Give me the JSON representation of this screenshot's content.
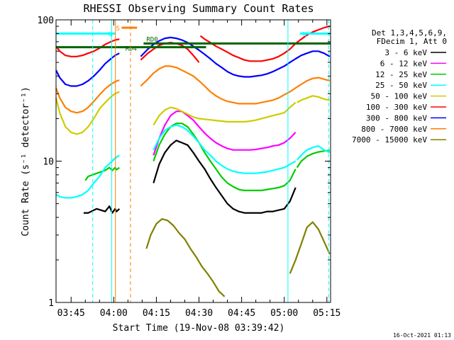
{
  "chart_data": {
    "type": "line",
    "title": "RHESSI Observing Summary Count Rates",
    "xlabel": "Start Time (19-Nov-08 03:39:42)",
    "ylabel": "Count Rate (s⁻¹ detector⁻¹)",
    "yscale": "log",
    "ylim": [
      1,
      100
    ],
    "xlim_minutes": [
      219.7,
      316.3
    ],
    "x_ticks": [
      {
        "label": "03:45",
        "minutes": 225
      },
      {
        "label": "04:00",
        "minutes": 240
      },
      {
        "label": "04:15",
        "minutes": 255
      },
      {
        "label": "04:30",
        "minutes": 270
      },
      {
        "label": "04:45",
        "minutes": 285
      },
      {
        "label": "05:00",
        "minutes": 300
      },
      {
        "label": "05:15",
        "minutes": 315
      }
    ],
    "y_ticks": [
      {
        "label": "1",
        "value": 1
      },
      {
        "label": "10",
        "value": 10
      },
      {
        "label": "100",
        "value": 100
      }
    ],
    "legend": {
      "placement": "right",
      "header": [
        "Det 1,3,4,5,6,9,",
        "FDecim 1, Att 0"
      ],
      "entries": [
        {
          "label": "3 - 6 keV",
          "color": "#000000"
        },
        {
          "label": "6 - 12 keV",
          "color": "#ff00ff"
        },
        {
          "label": "12 - 25 keV",
          "color": "#00cc00"
        },
        {
          "label": "25 - 50 keV",
          "color": "#00ffff"
        },
        {
          "label": "50 - 100 keV",
          "color": "#cccc00"
        },
        {
          "label": "100 - 300 keV",
          "color": "#ff0000"
        },
        {
          "label": "300 - 800 keV",
          "color": "#0000ff"
        },
        {
          "label": "800 - 7000 keV",
          "color": "#ff7f00"
        },
        {
          "label": "7000 - 15000 keV",
          "color": "#808000"
        }
      ]
    },
    "series": [
      {
        "name": "3 - 6 keV",
        "color": "#000000",
        "segments": [
          {
            "x": [
              229.4,
              231,
              234,
              237,
              238.5,
              239.5,
              240.5,
              241,
              242
            ],
            "y": [
              4.3,
              4.3,
              4.6,
              4.4,
              4.8,
              4.3,
              4.6,
              4.4,
              4.6
            ]
          },
          {
            "x": [
              254,
              256,
              258,
              260,
              262,
              264,
              266,
              268,
              270,
              272,
              274,
              276,
              278,
              280,
              282,
              284,
              286,
              288,
              290,
              292,
              294,
              296,
              298,
              300,
              302,
              304
            ],
            "y": [
              7,
              9.5,
              11.5,
              13,
              14,
              13.5,
              13,
              11.5,
              10,
              8.8,
              7.5,
              6.5,
              5.7,
              5,
              4.6,
              4.4,
              4.3,
              4.3,
              4.3,
              4.3,
              4.4,
              4.4,
              4.5,
              4.6,
              5.2,
              6.5
            ]
          }
        ]
      },
      {
        "name": "6 - 12 keV",
        "color": "#ff00ff",
        "segments": [
          {
            "x": [
              254,
              256,
              258,
              260,
              262,
              264,
              266,
              268,
              270,
              272,
              274,
              276,
              278,
              280,
              282,
              284,
              286,
              288,
              290,
              292,
              294,
              296,
              298,
              300,
              302,
              304
            ],
            "y": [
              11,
              14.5,
              18,
              21,
              22.5,
              22.5,
              21,
              19.5,
              17.5,
              15.8,
              14.5,
              13.5,
              12.8,
              12.3,
              12,
              12,
              12,
              12,
              12.1,
              12.3,
              12.5,
              12.8,
              13,
              13.5,
              14.5,
              16
            ]
          }
        ]
      },
      {
        "name": "12 - 25 keV",
        "color": "#00cc00",
        "segments": [
          {
            "x": [
              230,
              231,
              234,
              237,
              238.5,
              239.5,
              240.5,
              241,
              242
            ],
            "y": [
              7.3,
              7.8,
              8.2,
              8.6,
              9,
              8.6,
              9,
              8.7,
              9
            ]
          },
          {
            "x": [
              254,
              256,
              258,
              260,
              262,
              264,
              266,
              268,
              270,
              272,
              274,
              276,
              278,
              280,
              282,
              284,
              286,
              288,
              290,
              292,
              294,
              296,
              298,
              300,
              302,
              304
            ],
            "y": [
              10,
              13,
              15.5,
              17.5,
              18.5,
              18.5,
              17.5,
              15.5,
              13.5,
              11.5,
              10,
              8.8,
              7.7,
              7,
              6.6,
              6.3,
              6.2,
              6.2,
              6.2,
              6.2,
              6.3,
              6.4,
              6.5,
              6.7,
              7.3,
              8.8
            ]
          },
          {
            "x": [
              304.5,
              306,
              308,
              310,
              312,
              314,
              316
            ],
            "y": [
              9,
              10,
              10.8,
              11.3,
              11.6,
              11.8,
              11.9
            ]
          }
        ]
      },
      {
        "name": "25 - 50 keV",
        "color": "#00ffff",
        "segments": [
          {
            "x": [
              219.7,
              221,
              223,
              225,
              227,
              229,
              231,
              233,
              235,
              237,
              239,
              240.5,
              242
            ],
            "y": [
              5.8,
              5.6,
              5.5,
              5.5,
              5.6,
              5.8,
              6.2,
              7,
              7.8,
              9,
              9.8,
              10.5,
              11
            ]
          },
          {
            "x": [
              254,
              256,
              258,
              260,
              262,
              264,
              266,
              268,
              270,
              272,
              274,
              276,
              278,
              280,
              282,
              284,
              286,
              288,
              290,
              292,
              294,
              296,
              298,
              300,
              302,
              304
            ],
            "y": [
              12,
              14.5,
              16.5,
              17.5,
              18,
              17.5,
              16.5,
              15,
              13.5,
              12,
              11,
              10,
              9.3,
              8.8,
              8.5,
              8.3,
              8.2,
              8.2,
              8.2,
              8.3,
              8.4,
              8.6,
              8.8,
              9,
              9.5,
              10
            ]
          },
          {
            "x": [
              304.5,
              306,
              308,
              310,
              312,
              314,
              316
            ],
            "y": [
              10.2,
              11,
              12,
              12.5,
              12.8,
              12,
              11.5
            ]
          }
        ]
      },
      {
        "name": "50 - 100 keV",
        "color": "#cccc00",
        "segments": [
          {
            "x": [
              219.7,
              221,
              223,
              225,
              227,
              229,
              231,
              233,
              235,
              237,
              239,
              240.5,
              242
            ],
            "y": [
              28,
              22,
              17.5,
              16,
              15.5,
              16,
              17.5,
              20,
              23.5,
              26,
              28.5,
              30,
              31
            ]
          },
          {
            "x": [
              254,
              256,
              258,
              260,
              262,
              264,
              266,
              268,
              270,
              272,
              274,
              276,
              278,
              280,
              282,
              284,
              286,
              288,
              290,
              292,
              294,
              296,
              298,
              300,
              302,
              304
            ],
            "y": [
              18,
              21,
              23,
              24,
              23.5,
              22.5,
              21.5,
              20.5,
              20,
              19.8,
              19.6,
              19.4,
              19.2,
              19,
              19,
              19,
              19,
              19.2,
              19.5,
              20,
              20.5,
              21,
              21.5,
              22,
              24,
              26
            ]
          },
          {
            "x": [
              304.5,
              306,
              308,
              310,
              312,
              314,
              316
            ],
            "y": [
              26,
              27,
              28,
              29,
              28.5,
              27.5,
              27
            ]
          }
        ]
      },
      {
        "name": "100 - 300 keV",
        "color": "#ff0000",
        "segments": [
          {
            "x": [
              219.7,
              221,
              223,
              225,
              227,
              229,
              231,
              233,
              235,
              237,
              239,
              240.5,
              242
            ],
            "y": [
              65,
              60,
              56,
              55,
              55,
              56,
              58,
              60,
              63,
              67,
              70,
              72,
              73
            ]
          },
          {
            "x": [
              249.5,
              252,
              254,
              256,
              258,
              260,
              262,
              264,
              266,
              268,
              270
            ],
            "y": [
              52,
              58,
              62,
              66,
              68,
              69,
              68,
              66,
              62,
              56,
              50
            ]
          },
          {
            "x": [
              270.5,
              272,
              274,
              276,
              278,
              280,
              282,
              284,
              286,
              288,
              290,
              292,
              294,
              296,
              298,
              300,
              302,
              304,
              306,
              308,
              310,
              312,
              314,
              316
            ],
            "y": [
              77,
              73,
              69,
              65,
              62,
              59,
              56,
              54,
              52,
              51,
              51,
              51,
              52,
              53,
              55,
              58,
              62,
              68,
              73,
              78,
              82,
              85,
              88,
              90
            ]
          }
        ]
      },
      {
        "name": "300 - 800 keV",
        "color": "#0000ff",
        "segments": [
          {
            "x": [
              219.7,
              221,
              223,
              225,
              227,
              229,
              231,
              233,
              235,
              237,
              239,
              240.5,
              242
            ],
            "y": [
              44,
              39,
              35,
              34,
              34,
              35,
              37,
              40,
              44,
              49,
              53,
              56,
              58
            ]
          },
          {
            "x": [
              249.5,
              252,
              254,
              256,
              258,
              260,
              262,
              264,
              266,
              268,
              270,
              272,
              274,
              276,
              278,
              280,
              282,
              284,
              286,
              288,
              290,
              292,
              294,
              296,
              298,
              300,
              302,
              304,
              306,
              308,
              310,
              312,
              314,
              316
            ],
            "y": [
              55,
              62,
              67,
              71,
              74,
              75,
              74,
              72,
              69,
              65,
              61,
              57,
              53,
              49,
              46,
              43,
              41,
              40,
              39.5,
              39.5,
              40,
              40.5,
              41.5,
              43,
              45,
              47,
              50,
              53,
              56,
              58,
              60,
              60,
              58,
              55
            ]
          }
        ]
      },
      {
        "name": "800 - 7000 keV",
        "color": "#ff7f00",
        "segments": [
          {
            "x": [
              219.7,
              221,
              223,
              225,
              227,
              229,
              231,
              233,
              235,
              237,
              239,
              240.5,
              242
            ],
            "y": [
              33,
              28,
              24,
              22.5,
              22,
              22.5,
              24,
              26.5,
              29.5,
              32.5,
              35,
              36.5,
              37.5
            ]
          },
          {
            "x": [
              249.5,
              252,
              254,
              256,
              258,
              260,
              262,
              264,
              266,
              268,
              270,
              272,
              274,
              276,
              278,
              280,
              282,
              284,
              286,
              288,
              290,
              292,
              294,
              296,
              298,
              300,
              302,
              304,
              306,
              308,
              310,
              312,
              314,
              316
            ],
            "y": [
              34,
              38,
              42,
              45,
              47,
              47,
              46,
              44,
              42,
              40,
              37,
              34,
              31,
              29,
              27.5,
              26.5,
              26,
              25.5,
              25.5,
              25.5,
              25.5,
              26,
              26.5,
              27,
              28,
              29.5,
              31,
              33,
              35,
              37,
              38.5,
              39,
              38,
              37
            ]
          }
        ]
      },
      {
        "name": "7000 - 15000 keV",
        "color": "#808000",
        "segments": [
          {
            "x": [
              251.5,
              253,
              255,
              257,
              259,
              261,
              263,
              265,
              267,
              269,
              271,
              273,
              275,
              277,
              279
            ],
            "y": [
              2.4,
              3,
              3.6,
              3.9,
              3.8,
              3.5,
              3.1,
              2.8,
              2.4,
              2.1,
              1.8,
              1.6,
              1.4,
              1.2,
              1.1
            ]
          },
          {
            "x": [
              302,
              304,
              306,
              308,
              310,
              312,
              314,
              316
            ],
            "y": [
              1.6,
              2,
              2.6,
              3.4,
              3.7,
              3.3,
              2.7,
              2.2
            ]
          }
        ]
      }
    ],
    "state_bars": [
      {
        "label": "N",
        "color": "#00ffff",
        "start_min": 219.7,
        "end_min": 240.5,
        "value": 80
      },
      {
        "label": "N",
        "color": "#00ffff",
        "start_min": 305.5,
        "end_min": 316.3,
        "value": 80
      },
      {
        "label": "S",
        "color": "#ff7f00",
        "start_min": 242.8,
        "end_min": 248.2,
        "value": 88
      },
      {
        "label": "RD4",
        "color": "#006400",
        "start_min": 219.7,
        "end_min": 272.5,
        "value": 64
      },
      {
        "label": "RD0",
        "color": "#006400",
        "start_min": 250.5,
        "end_min": 316.3,
        "value": 68
      }
    ],
    "vertical_markers": [
      {
        "minutes": 232.6,
        "color": "#00ffff",
        "style": "dashed"
      },
      {
        "minutes": 239.3,
        "color": "#00ffff",
        "style": "solid"
      },
      {
        "minutes": 240.6,
        "color": "#ff7f00",
        "style": "solid"
      },
      {
        "minutes": 245.9,
        "color": "#ff7f00",
        "style": "dashed"
      },
      {
        "minutes": 301.3,
        "color": "#00ffff",
        "style": "solid"
      },
      {
        "minutes": 315.6,
        "color": "#00ffff",
        "style": "dashed"
      }
    ],
    "grid": false
  },
  "footer": {
    "timestamp": "16-Oct-2021 01:13"
  }
}
